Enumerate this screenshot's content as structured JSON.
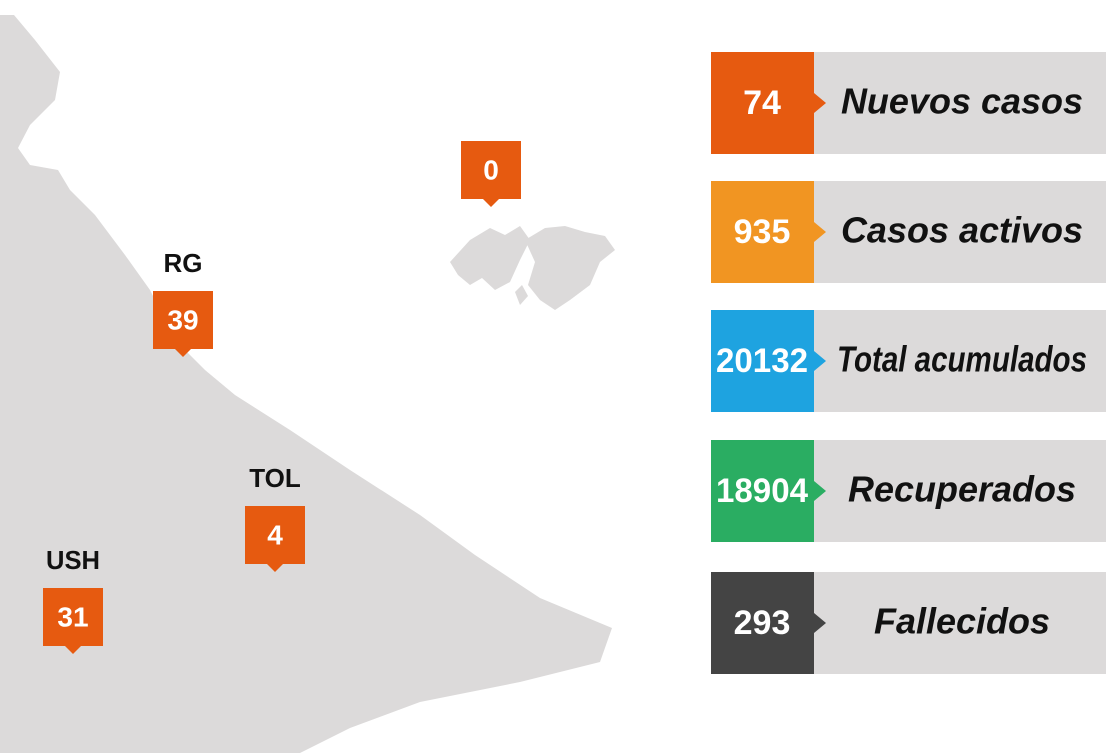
{
  "map": {
    "markers": [
      {
        "value": 0
      },
      {
        "label": "RG",
        "value": 39
      },
      {
        "label": "TOL",
        "value": 4
      },
      {
        "label": "USH",
        "value": 31
      }
    ]
  },
  "stats": [
    {
      "value": 74,
      "label": "Nuevos casos",
      "color": "#e65a10"
    },
    {
      "value": 935,
      "label": "Casos activos",
      "color": "#f19522"
    },
    {
      "value": 20132,
      "label": "Total acumulados",
      "color": "#1ea3e0"
    },
    {
      "value": 18904,
      "label": "Recuperados",
      "color": "#2aad62"
    },
    {
      "value": 293,
      "label": "Fallecidos",
      "color": "#444444"
    }
  ]
}
